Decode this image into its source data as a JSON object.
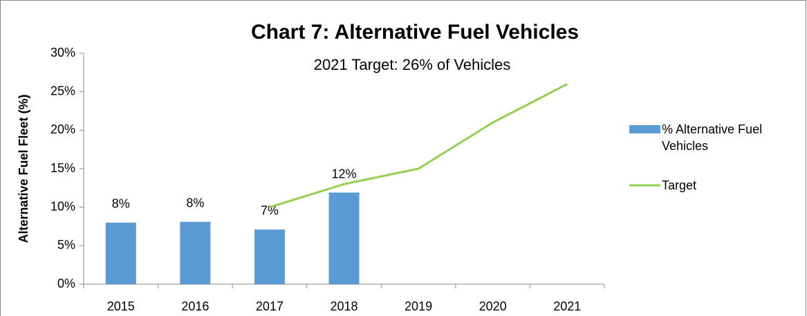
{
  "chart_data": {
    "type": "bar",
    "title": "Chart 7: Alternative Fuel Vehicles",
    "subtitle": "2021 Target: 26% of Vehicles",
    "y_label": "Alternative Fuel Fleet (%)",
    "categories": [
      "2015",
      "2016",
      "2017",
      "2018",
      "2019",
      "2020",
      "2021"
    ],
    "series": [
      {
        "name": "% Alternative Fuel Vehicles",
        "type": "bar",
        "color": "#5b9bd5",
        "values": [
          8.0,
          8.1,
          7.1,
          11.9,
          null,
          null,
          null
        ],
        "value_labels": [
          "8%",
          "8%",
          "7%",
          "12%",
          null,
          null,
          null
        ]
      },
      {
        "name": "Target",
        "type": "line",
        "color": "#92d050",
        "values": [
          null,
          null,
          10,
          13,
          15,
          21,
          26
        ]
      }
    ],
    "ylim": [
      0,
      30
    ],
    "yticks": [
      {
        "value": 0,
        "label": "0%"
      },
      {
        "value": 5,
        "label": "5%"
      },
      {
        "value": 10,
        "label": "10%"
      },
      {
        "value": 15,
        "label": "15%"
      },
      {
        "value": 20,
        "label": "20%"
      },
      {
        "value": 25,
        "label": "25%"
      },
      {
        "value": 30,
        "label": "30%"
      }
    ],
    "legend": "right"
  }
}
